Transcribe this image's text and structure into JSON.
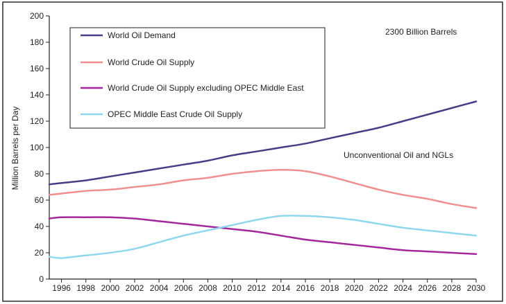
{
  "chart_data": {
    "type": "line",
    "ylabel": "Million Barrels per Day",
    "xlabel": "",
    "xlim": [
      1995,
      2030
    ],
    "ylim": [
      0,
      200
    ],
    "x_ticks": [
      "1996",
      "1998",
      "2000",
      "2002",
      "2004",
      "2006",
      "2008",
      "2010",
      "2012",
      "2014",
      "2016",
      "2018",
      "2020",
      "2022",
      "2024",
      "2026",
      "2028",
      "2030"
    ],
    "y_ticks": [
      "0",
      "20",
      "40",
      "60",
      "80",
      "100",
      "120",
      "140",
      "160",
      "180",
      "200"
    ],
    "grid": false,
    "legend_position": "top-left",
    "annotations": [
      {
        "text": "2300 Billion Barrels"
      },
      {
        "text": "Unconventional Oil and NGLs"
      }
    ],
    "series": [
      {
        "name": "World Oil Demand",
        "color": "#4a3b86",
        "x": [
          1995,
          1996,
          1998,
          2000,
          2002,
          2004,
          2006,
          2008,
          2010,
          2012,
          2014,
          2016,
          2018,
          2020,
          2022,
          2024,
          2026,
          2028,
          2030
        ],
        "y": [
          72,
          73,
          75,
          78,
          81,
          84,
          87,
          90,
          94,
          97,
          100,
          103,
          107,
          111,
          115,
          120,
          125,
          130,
          135
        ]
      },
      {
        "name": "World Crude Oil Supply",
        "color": "#f08f8f",
        "x": [
          1995,
          1996,
          1998,
          2000,
          2002,
          2004,
          2006,
          2008,
          2010,
          2012,
          2014,
          2016,
          2018,
          2020,
          2022,
          2024,
          2026,
          2028,
          2030
        ],
        "y": [
          64,
          65,
          67,
          68,
          70,
          72,
          75,
          77,
          80,
          82,
          83,
          82,
          78,
          73,
          68,
          64,
          61,
          57,
          54
        ]
      },
      {
        "name": "World Crude Oil Supply excluding OPEC Middle East",
        "color": "#a3279c",
        "x": [
          1995,
          1996,
          1998,
          2000,
          2002,
          2004,
          2006,
          2008,
          2010,
          2012,
          2014,
          2016,
          2018,
          2020,
          2022,
          2024,
          2026,
          2028,
          2030
        ],
        "y": [
          46,
          47,
          47,
          47,
          46,
          44,
          42,
          40,
          38,
          36,
          33,
          30,
          28,
          26,
          24,
          22,
          21,
          20,
          19
        ]
      },
      {
        "name": "OPEC Middle East Crude Oil Supply",
        "color": "#8fd7ef",
        "x": [
          1995,
          1996,
          1998,
          2000,
          2002,
          2004,
          2006,
          2008,
          2010,
          2012,
          2014,
          2016,
          2018,
          2020,
          2022,
          2024,
          2026,
          2028,
          2030
        ],
        "y": [
          17,
          16,
          18,
          20,
          23,
          28,
          33,
          37,
          41,
          45,
          48,
          48,
          47,
          45,
          42,
          39,
          37,
          35,
          33
        ]
      }
    ]
  }
}
